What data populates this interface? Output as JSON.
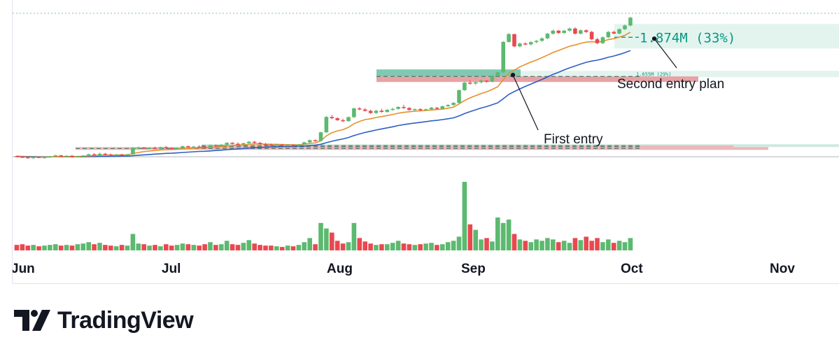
{
  "chart_data": {
    "type": "candlestick",
    "title": "",
    "x_ticks": [
      "Jun",
      "Jul",
      "Aug",
      "Sep",
      "Oct",
      "Nov"
    ],
    "colors": {
      "up": "#5cb96f",
      "down": "#e9484f",
      "ma_fast": "#e8902a",
      "ma_slow": "#2f5fc4",
      "target_zone": "#e3f4ef",
      "stop_zone": "#e8a2a6",
      "dashed": "#089981"
    },
    "y_range": [
      1.1,
      2.02
    ],
    "series": [
      {
        "name": "",
        "type": "ohlc",
        "values": [
          [
            1.209,
            1.212,
            1.202,
            1.205
          ],
          [
            1.205,
            1.209,
            1.2,
            1.203
          ],
          [
            1.203,
            1.206,
            1.194,
            1.197
          ],
          [
            1.197,
            1.206,
            1.192,
            1.204
          ],
          [
            1.204,
            1.207,
            1.198,
            1.201
          ],
          [
            1.201,
            1.206,
            1.196,
            1.203
          ],
          [
            1.203,
            1.21,
            1.2,
            1.207
          ],
          [
            1.207,
            1.216,
            1.204,
            1.213
          ],
          [
            1.213,
            1.216,
            1.204,
            1.207
          ],
          [
            1.207,
            1.213,
            1.203,
            1.211
          ],
          [
            1.211,
            1.214,
            1.201,
            1.204
          ],
          [
            1.204,
            1.21,
            1.199,
            1.208
          ],
          [
            1.208,
            1.214,
            1.204,
            1.212
          ],
          [
            1.212,
            1.223,
            1.209,
            1.219
          ],
          [
            1.219,
            1.226,
            1.211,
            1.214
          ],
          [
            1.214,
            1.228,
            1.21,
            1.222
          ],
          [
            1.222,
            1.227,
            1.215,
            1.218
          ],
          [
            1.218,
            1.223,
            1.211,
            1.216
          ],
          [
            1.216,
            1.22,
            1.211,
            1.218
          ],
          [
            1.218,
            1.222,
            1.213,
            1.215
          ],
          [
            1.215,
            1.221,
            1.211,
            1.219
          ],
          [
            1.219,
            1.259,
            1.216,
            1.255
          ],
          [
            1.255,
            1.262,
            1.248,
            1.257
          ],
          [
            1.257,
            1.26,
            1.246,
            1.251
          ],
          [
            1.251,
            1.258,
            1.247,
            1.255
          ],
          [
            1.255,
            1.262,
            1.249,
            1.251
          ],
          [
            1.251,
            1.262,
            1.247,
            1.259
          ],
          [
            1.259,
            1.266,
            1.25,
            1.254
          ],
          [
            1.254,
            1.259,
            1.246,
            1.249
          ],
          [
            1.249,
            1.257,
            1.245,
            1.254
          ],
          [
            1.254,
            1.268,
            1.251,
            1.264
          ],
          [
            1.264,
            1.269,
            1.255,
            1.258
          ],
          [
            1.258,
            1.266,
            1.254,
            1.262
          ],
          [
            1.262,
            1.27,
            1.256,
            1.26
          ],
          [
            1.26,
            1.265,
            1.254,
            1.258
          ],
          [
            1.258,
            1.273,
            1.255,
            1.27
          ],
          [
            1.27,
            1.274,
            1.26,
            1.264
          ],
          [
            1.264,
            1.276,
            1.261,
            1.272
          ],
          [
            1.272,
            1.287,
            1.269,
            1.283
          ],
          [
            1.283,
            1.287,
            1.274,
            1.278
          ],
          [
            1.278,
            1.286,
            1.272,
            1.275
          ],
          [
            1.275,
            1.285,
            1.271,
            1.281
          ],
          [
            1.281,
            1.294,
            1.277,
            1.289
          ],
          [
            1.289,
            1.294,
            1.279,
            1.283
          ],
          [
            1.283,
            1.288,
            1.272,
            1.276
          ],
          [
            1.276,
            1.282,
            1.269,
            1.273
          ],
          [
            1.273,
            1.279,
            1.266,
            1.27
          ],
          [
            1.27,
            1.277,
            1.265,
            1.273
          ],
          [
            1.273,
            1.278,
            1.265,
            1.268
          ],
          [
            1.268,
            1.275,
            1.263,
            1.271
          ],
          [
            1.271,
            1.276,
            1.262,
            1.266
          ],
          [
            1.266,
            1.276,
            1.262,
            1.274
          ],
          [
            1.274,
            1.29,
            1.271,
            1.286
          ],
          [
            1.286,
            1.302,
            1.282,
            1.298
          ],
          [
            1.298,
            1.302,
            1.29,
            1.294
          ],
          [
            1.294,
            1.345,
            1.291,
            1.342
          ],
          [
            1.342,
            1.433,
            1.338,
            1.428
          ],
          [
            1.428,
            1.44,
            1.415,
            1.421
          ],
          [
            1.421,
            1.426,
            1.406,
            1.41
          ],
          [
            1.41,
            1.418,
            1.398,
            1.405
          ],
          [
            1.405,
            1.431,
            1.4,
            1.427
          ],
          [
            1.427,
            1.481,
            1.422,
            1.476
          ],
          [
            1.476,
            1.483,
            1.465,
            1.47
          ],
          [
            1.47,
            1.478,
            1.458,
            1.462
          ],
          [
            1.462,
            1.469,
            1.445,
            1.45
          ],
          [
            1.45,
            1.468,
            1.445,
            1.463
          ],
          [
            1.463,
            1.474,
            1.452,
            1.456
          ],
          [
            1.456,
            1.472,
            1.451,
            1.468
          ],
          [
            1.468,
            1.48,
            1.462,
            1.473
          ],
          [
            1.473,
            1.488,
            1.469,
            1.484
          ],
          [
            1.484,
            1.496,
            1.472,
            1.478
          ],
          [
            1.478,
            1.484,
            1.462,
            1.467
          ],
          [
            1.467,
            1.476,
            1.459,
            1.472
          ],
          [
            1.472,
            1.478,
            1.461,
            1.466
          ],
          [
            1.466,
            1.475,
            1.461,
            1.471
          ],
          [
            1.471,
            1.484,
            1.467,
            1.48
          ],
          [
            1.48,
            1.484,
            1.47,
            1.474
          ],
          [
            1.474,
            1.492,
            1.47,
            1.488
          ],
          [
            1.488,
            1.5,
            1.484,
            1.495
          ],
          [
            1.495,
            1.512,
            1.49,
            1.507
          ],
          [
            1.507,
            1.583,
            1.503,
            1.578
          ],
          [
            1.578,
            1.624,
            1.574,
            1.62
          ],
          [
            1.62,
            1.634,
            1.608,
            1.615
          ],
          [
            1.615,
            1.628,
            1.607,
            1.622
          ],
          [
            1.622,
            1.637,
            1.616,
            1.631
          ],
          [
            1.631,
            1.634,
            1.62,
            1.626
          ],
          [
            1.626,
            1.663,
            1.622,
            1.659
          ],
          [
            1.659,
            1.683,
            1.654,
            1.678
          ],
          [
            1.678,
            1.853,
            1.673,
            1.848
          ],
          [
            1.848,
            1.898,
            1.843,
            1.892
          ],
          [
            1.892,
            1.893,
            1.818,
            1.823
          ],
          [
            1.823,
            1.845,
            1.817,
            1.839
          ],
          [
            1.839,
            1.846,
            1.83,
            1.834
          ],
          [
            1.834,
            1.852,
            1.829,
            1.847
          ],
          [
            1.847,
            1.859,
            1.84,
            1.854
          ],
          [
            1.854,
            1.873,
            1.849,
            1.868
          ],
          [
            1.868,
            1.899,
            1.863,
            1.894
          ],
          [
            1.894,
            1.917,
            1.889,
            1.911
          ],
          [
            1.911,
            1.915,
            1.893,
            1.898
          ],
          [
            1.898,
            1.916,
            1.893,
            1.911
          ],
          [
            1.911,
            1.929,
            1.905,
            1.923
          ],
          [
            1.923,
            1.931,
            1.889,
            1.894
          ],
          [
            1.894,
            1.918,
            1.889,
            1.913
          ],
          [
            1.913,
            1.918,
            1.898,
            1.904
          ],
          [
            1.904,
            1.91,
            1.858,
            1.863
          ],
          [
            1.863,
            1.871,
            1.835,
            1.841
          ],
          [
            1.841,
            1.879,
            1.836,
            1.874
          ],
          [
            1.874,
            1.909,
            1.869,
            1.904
          ],
          [
            1.904,
            1.911,
            1.89,
            1.895
          ],
          [
            1.895,
            1.925,
            1.89,
            1.919
          ],
          [
            1.919,
            1.946,
            1.914,
            1.94
          ],
          [
            1.94,
            1.989,
            1.935,
            1.984
          ]
        ]
      },
      {
        "name": "",
        "type": "line",
        "style": "ma_fast",
        "values": [
          1.205,
          1.205,
          1.203,
          1.203,
          1.203,
          1.203,
          1.204,
          1.206,
          1.206,
          1.207,
          1.206,
          1.207,
          1.208,
          1.21,
          1.211,
          1.213,
          1.214,
          1.214,
          1.215,
          1.215,
          1.216,
          1.223,
          1.229,
          1.234,
          1.237,
          1.24,
          1.243,
          1.245,
          1.246,
          1.247,
          1.25,
          1.252,
          1.254,
          1.255,
          1.255,
          1.258,
          1.259,
          1.262,
          1.266,
          1.268,
          1.27,
          1.272,
          1.275,
          1.277,
          1.277,
          1.276,
          1.275,
          1.275,
          1.273,
          1.273,
          1.272,
          1.272,
          1.275,
          1.28,
          1.283,
          1.295,
          1.322,
          1.34,
          1.35,
          1.357,
          1.37,
          1.39,
          1.403,
          1.413,
          1.418,
          1.425,
          1.43,
          1.436,
          1.442,
          1.449,
          1.454,
          1.457,
          1.46,
          1.462,
          1.464,
          1.467,
          1.469,
          1.472,
          1.477,
          1.483,
          1.501,
          1.52,
          1.535,
          1.547,
          1.559,
          1.569,
          1.582,
          1.597,
          1.636,
          1.673,
          1.69,
          1.708,
          1.722,
          1.735,
          1.747,
          1.76,
          1.774,
          1.789,
          1.8,
          1.812,
          1.824,
          1.831,
          1.84,
          1.847,
          1.849,
          1.847,
          1.852,
          1.861,
          1.866,
          1.875,
          1.885,
          1.902
        ]
      },
      {
        "name": "",
        "type": "line",
        "style": "ma_slow",
        "values": [
          1.208,
          1.207,
          1.206,
          1.206,
          1.205,
          1.205,
          1.205,
          1.205,
          1.205,
          1.205,
          1.205,
          1.205,
          1.205,
          1.206,
          1.206,
          1.207,
          1.207,
          1.208,
          1.208,
          1.209,
          1.209,
          1.211,
          1.214,
          1.216,
          1.218,
          1.22,
          1.222,
          1.224,
          1.225,
          1.227,
          1.229,
          1.231,
          1.233,
          1.235,
          1.236,
          1.238,
          1.24,
          1.242,
          1.245,
          1.247,
          1.249,
          1.251,
          1.254,
          1.256,
          1.257,
          1.259,
          1.26,
          1.261,
          1.262,
          1.262,
          1.263,
          1.264,
          1.265,
          1.268,
          1.27,
          1.275,
          1.284,
          1.292,
          1.299,
          1.305,
          1.313,
          1.324,
          1.333,
          1.341,
          1.348,
          1.355,
          1.361,
          1.367,
          1.373,
          1.38,
          1.385,
          1.39,
          1.394,
          1.398,
          1.402,
          1.406,
          1.409,
          1.413,
          1.418,
          1.423,
          1.434,
          1.447,
          1.458,
          1.468,
          1.478,
          1.486,
          1.496,
          1.507,
          1.53,
          1.554,
          1.57,
          1.585,
          1.599,
          1.612,
          1.625,
          1.638,
          1.652,
          1.666,
          1.678,
          1.691,
          1.703,
          1.713,
          1.724,
          1.734,
          1.741,
          1.746,
          1.753,
          1.762,
          1.769,
          1.778,
          1.788,
          1.8
        ]
      }
    ],
    "volume": {
      "max": 100,
      "values": [
        8,
        9,
        7,
        8,
        6,
        7,
        8,
        9,
        7,
        8,
        7,
        9,
        10,
        12,
        9,
        11,
        8,
        7,
        6,
        8,
        7,
        24,
        10,
        9,
        7,
        8,
        6,
        9,
        7,
        8,
        10,
        9,
        8,
        7,
        9,
        12,
        8,
        9,
        14,
        9,
        8,
        11,
        15,
        10,
        8,
        7,
        7,
        6,
        5,
        7,
        6,
        8,
        12,
        18,
        9,
        40,
        32,
        26,
        14,
        10,
        12,
        40,
        18,
        13,
        10,
        8,
        9,
        9,
        11,
        14,
        10,
        9,
        8,
        9,
        10,
        11,
        8,
        9,
        12,
        14,
        20,
        100,
        38,
        30,
        16,
        18,
        13,
        48,
        40,
        45,
        24,
        16,
        14,
        12,
        16,
        14,
        18,
        16,
        12,
        14,
        11,
        18,
        15,
        20,
        14,
        18,
        12,
        16,
        11,
        14,
        12,
        18
      ]
    },
    "levels": {
      "first_entry": 1.655,
      "stop": 1.64,
      "second_entry": 1.874,
      "low_line_1": 1.2675,
      "low_line_2": 1.261,
      "low_line_3": 1.2515
    },
    "position_labels": {
      "second": "1.874M (33%)",
      "first": "1.655M (29%)"
    },
    "annotations": {
      "second_entry": "Second entry plan",
      "first_entry": "First entry"
    }
  },
  "branding": {
    "logo_text": "TradingView",
    "logo_icon": "tradingview-logo-icon"
  }
}
